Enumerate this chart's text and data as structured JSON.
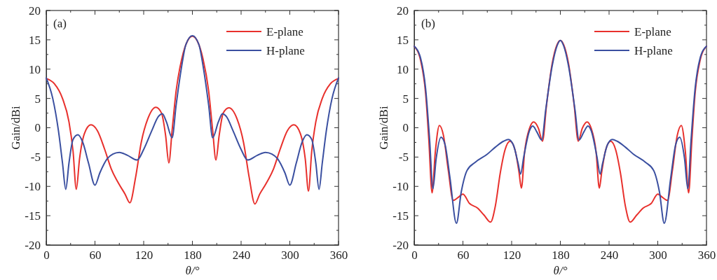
{
  "chart_data": [
    {
      "type": "line",
      "annotations": [
        "(a)"
      ],
      "xlabel": "θ/°",
      "ylabel": "Gain/dBi",
      "xlim": [
        0,
        360
      ],
      "ylim": [
        -20,
        20
      ],
      "xticks": [
        0,
        {
          "value": 30,
          "label": null
        },
        60,
        {
          "value": 90,
          "label": null
        },
        120,
        {
          "value": 150,
          "label": null
        },
        180,
        {
          "value": 210,
          "label": null
        },
        240,
        {
          "value": 270,
          "label": null
        },
        300,
        {
          "value": 330,
          "label": null
        },
        360
      ],
      "yticks": [
        -20,
        {
          "value": -17.5,
          "label": null
        },
        -15,
        {
          "value": -12.5,
          "label": null
        },
        -10,
        {
          "value": -7.5,
          "label": null
        },
        -5,
        {
          "value": -2.5,
          "label": null
        },
        0,
        {
          "value": 2.5,
          "label": null
        },
        5,
        {
          "value": 7.5,
          "label": null
        },
        10,
        {
          "value": 12.5,
          "label": null
        },
        15,
        {
          "value": 17.5,
          "label": null
        },
        20
      ],
      "legend": "top right",
      "grid": false,
      "marker": "none",
      "line_style": "solid",
      "series": [
        {
          "name": "E-plane",
          "color": "#e8302c",
          "x": [
            0,
            10,
            20,
            28,
            33,
            37,
            41,
            47,
            55,
            63,
            72,
            80,
            90,
            97,
            103,
            110,
            117,
            125,
            135,
            142,
            147,
            151,
            155,
            160,
            167,
            174,
            180,
            186,
            193,
            200,
            205,
            209,
            213,
            218,
            225,
            235,
            243,
            250,
            257,
            263,
            270,
            280,
            288,
            297,
            305,
            313,
            319,
            323,
            327,
            332,
            340,
            350,
            360
          ],
          "values": [
            8.4,
            7.5,
            5,
            1,
            -4,
            -10.5,
            -5.3,
            -1,
            0.5,
            -0.5,
            -3.7,
            -7,
            -9.7,
            -11.3,
            -12.8,
            -8.5,
            -2.5,
            1.5,
            3.5,
            2.5,
            -1.3,
            -6,
            -0.5,
            6.3,
            11.8,
            14.8,
            15.6,
            14.8,
            11.8,
            6.3,
            -0.5,
            -5.5,
            -1.3,
            2.5,
            3.4,
            1.5,
            -2.5,
            -8.5,
            -13,
            -11.3,
            -9.7,
            -7,
            -3.7,
            -0.5,
            0.5,
            -1,
            -5.3,
            -10.8,
            -4,
            1,
            5,
            7.5,
            8.4
          ]
        },
        {
          "name": "H-plane",
          "color": "#3a4fa0",
          "x": [
            0,
            8,
            15,
            20,
            24,
            28,
            33,
            39,
            45,
            52,
            60,
            66,
            75,
            82,
            90,
            100,
            112,
            120,
            130,
            138,
            143,
            148,
            155,
            160,
            166,
            172,
            180,
            188,
            194,
            200,
            205,
            212,
            217,
            222,
            230,
            240,
            248,
            260,
            270,
            278,
            285,
            294,
            300,
            308,
            315,
            321,
            327,
            332,
            336,
            340,
            345,
            352,
            360
          ],
          "values": [
            8.5,
            5,
            -0.5,
            -6,
            -10.5,
            -6,
            -2,
            -1.2,
            -2.5,
            -6,
            -9.8,
            -7.7,
            -5.3,
            -4.5,
            -4.2,
            -4.7,
            -5.5,
            -3.7,
            -0.5,
            1.9,
            2.4,
            1,
            -1.7,
            3.9,
            9.8,
            14.2,
            15.7,
            14.2,
            9.8,
            3.9,
            -1.7,
            1,
            2.4,
            1.9,
            -0.5,
            -3.7,
            -5.5,
            -4.7,
            -4.2,
            -4.5,
            -5.3,
            -7.7,
            -9.8,
            -6,
            -2.5,
            -1.2,
            -2,
            -6,
            -10.5,
            -6,
            -0.5,
            5,
            8.5
          ]
        }
      ]
    },
    {
      "type": "line",
      "annotations": [
        "(b)"
      ],
      "xlabel": "θ/°",
      "ylabel": "Gain/dBi",
      "xlim": [
        0,
        360
      ],
      "ylim": [
        -20,
        20
      ],
      "xticks": [
        0,
        {
          "value": 30,
          "label": null
        },
        60,
        {
          "value": 90,
          "label": null
        },
        120,
        {
          "value": 150,
          "label": null
        },
        180,
        {
          "value": 210,
          "label": null
        },
        240,
        {
          "value": 270,
          "label": null
        },
        300,
        {
          "value": 330,
          "label": null
        },
        360
      ],
      "yticks": [
        -20,
        {
          "value": -17.5,
          "label": null
        },
        -15,
        {
          "value": -12.5,
          "label": null
        },
        -10,
        {
          "value": -7.5,
          "label": null
        },
        -5,
        {
          "value": -2.5,
          "label": null
        },
        0,
        {
          "value": 2.5,
          "label": null
        },
        5,
        {
          "value": 7.5,
          "label": null
        },
        10,
        {
          "value": 12.5,
          "label": null
        },
        15,
        {
          "value": 17.5,
          "label": null
        },
        20
      ],
      "legend": "top right",
      "grid": false,
      "marker": "none",
      "line_style": "solid",
      "series": [
        {
          "name": "E-plane",
          "color": "#e8302c",
          "x": [
            0,
            8,
            14,
            18,
            22,
            26,
            31,
            36,
            42,
            48,
            54,
            60,
            68,
            78,
            86,
            94,
            100,
            106,
            112,
            118,
            124,
            129,
            132,
            136,
            142,
            147,
            153,
            158,
            163,
            170,
            176,
            180,
            184,
            190,
            197,
            202,
            207,
            213,
            218,
            224,
            228,
            231,
            236,
            242,
            248,
            254,
            260,
            266,
            274,
            282,
            292,
            300,
            306,
            312,
            318,
            324,
            329,
            334,
            338,
            342,
            346,
            352,
            360
          ],
          "values": [
            13.9,
            11.4,
            5.9,
            -2.1,
            -11.1,
            -4.1,
            0.4,
            -1.3,
            -7.3,
            -12.4,
            -11.9,
            -11.3,
            -12.9,
            -13.7,
            -14.9,
            -16.1,
            -13.3,
            -7.7,
            -3.7,
            -2.3,
            -3.7,
            -7.5,
            -10.3,
            -4.1,
            -0.1,
            1,
            -0.1,
            -2.3,
            3.9,
            11,
            14.2,
            14.9,
            14.2,
            11,
            3.9,
            -2.3,
            -0.1,
            1,
            -0.1,
            -4.1,
            -10.3,
            -7.5,
            -3.7,
            -2.3,
            -3.7,
            -7.7,
            -13.3,
            -16.1,
            -14.9,
            -13.7,
            -12.9,
            -11.3,
            -11.9,
            -12.4,
            -7.3,
            -1.3,
            0.4,
            -4.1,
            -11.1,
            -2.1,
            5.9,
            11.4,
            13.9
          ]
        },
        {
          "name": "H-plane",
          "color": "#3a4fa0",
          "x": [
            0,
            8,
            14,
            19,
            23,
            27,
            33,
            38,
            44,
            52,
            58,
            65,
            75,
            90,
            100,
            110,
            116,
            122,
            128,
            131,
            135,
            142,
            146,
            151,
            157,
            162,
            170,
            176,
            180,
            184,
            190,
            198,
            203,
            209,
            214,
            218,
            225,
            229,
            232,
            238,
            244,
            250,
            260,
            270,
            285,
            295,
            302,
            308,
            316,
            322,
            327,
            333,
            337,
            341,
            346,
            352,
            360
          ],
          "values": [
            13.9,
            11.8,
            6.7,
            -2.1,
            -10.4,
            -5.3,
            -1.6,
            -2.9,
            -8.5,
            -16.3,
            -10.9,
            -7.3,
            -5.9,
            -4.5,
            -3.3,
            -2.3,
            -2,
            -2.9,
            -6.1,
            -7.9,
            -4.9,
            -0.5,
            0.3,
            -0.7,
            -2.1,
            3.1,
            10.6,
            14,
            14.9,
            14,
            10.6,
            3.1,
            -2.1,
            -0.7,
            0.3,
            -0.5,
            -4.9,
            -7.9,
            -6.1,
            -2.9,
            -2,
            -2.3,
            -3.3,
            -4.5,
            -5.9,
            -7.3,
            -10.9,
            -16.3,
            -8.5,
            -2.9,
            -1.6,
            -5.3,
            -10.4,
            -2.1,
            6.7,
            11.8,
            13.9
          ]
        }
      ]
    }
  ]
}
